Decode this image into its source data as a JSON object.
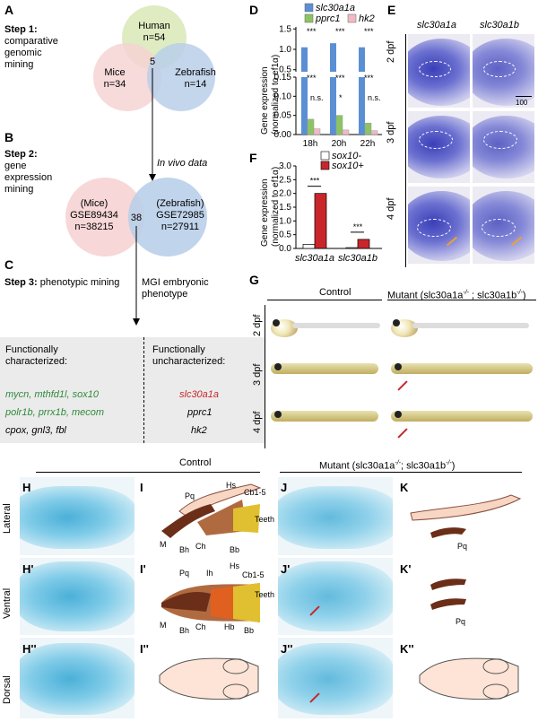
{
  "panel_labels": {
    "A": "A",
    "B": "B",
    "C": "C",
    "D": "D",
    "E": "E",
    "F": "F",
    "G": "G",
    "H": "H",
    "H1": "H'",
    "H2": "H''",
    "I": "I",
    "I1": "I'",
    "I2": "I''",
    "J": "J",
    "J1": "J'",
    "J2": "J''",
    "K": "K",
    "K1": "K'",
    "K2": "K''"
  },
  "step1": {
    "title": "Step 1",
    "colon": ":",
    "lines": [
      "comparative",
      "genomic",
      "mining"
    ]
  },
  "venn1": {
    "human": "Human",
    "human_n": "n=54",
    "mice": "Mice",
    "mice_n": "n=34",
    "zebrafish": "Zebrafish",
    "zebrafish_n": "n=14",
    "overlap": "5",
    "colors": {
      "human": "#d9e8b6",
      "mice": "#f6d3d3",
      "zebrafish": "#b9cfe9"
    }
  },
  "step2": {
    "title": "Step 2",
    "colon": ":",
    "lines": [
      "gene",
      "expression",
      "mining"
    ],
    "arrow_label": "In vivo data"
  },
  "venn2": {
    "left_name": "(Mice)",
    "left_id": "GSE89434",
    "left_n": "n=38215",
    "right_name": "(Zebrafish)",
    "right_id": "GSE72985",
    "right_n": "n=27911",
    "overlap": "38"
  },
  "step3": {
    "title": "Step 3",
    "colon": ":",
    "line": "phenotypic mining",
    "arrow_label_1": "MGI embryonic",
    "arrow_label_2": "phenotype"
  },
  "table": {
    "left_header_1": "Functionally",
    "left_header_2": "characterized:",
    "right_header_1": "Functionally",
    "right_header_2": "uncharacterized:",
    "left_rows": [
      "mycn, mthfd1l, sox10",
      "polr1b, prrx1b, mecom",
      "cpox, gnl3, fbl"
    ],
    "right_rows": [
      "slc30a1a",
      "pprc1",
      "hk2"
    ],
    "colors": {
      "green": "#2e8b3c",
      "red": "#c8262b"
    }
  },
  "chart_D": {
    "type": "bar",
    "legend": [
      "slc30a1a",
      "pprc1",
      "hk2"
    ],
    "colors": [
      "#5b8fd4",
      "#8cc462",
      "#f1b9c5"
    ],
    "categories": [
      "18h",
      "20h",
      "22h"
    ],
    "series": [
      {
        "name": "slc30a1a",
        "values": [
          1.05,
          1.15,
          1.05
        ]
      },
      {
        "name": "pprc1",
        "values": [
          0.04,
          0.05,
          0.03
        ]
      },
      {
        "name": "hk2",
        "values": [
          0.015,
          0.012,
          0.01
        ]
      }
    ],
    "ylabel_1": "Gene expression",
    "ylabel_2": "(normalized to ef1α)",
    "yticks_top": [
      "1.5",
      "1.0",
      "0.5"
    ],
    "yticks_bottom": [
      "0.15",
      "0.10",
      "0.05",
      "0.00"
    ],
    "sig": [
      "***",
      "***",
      "n.s.",
      "***",
      "***",
      "*",
      "***",
      "***",
      "n.s."
    ]
  },
  "chart_F": {
    "type": "bar",
    "legend": [
      "sox10-",
      "sox10+"
    ],
    "colors": [
      "#ffffff",
      "#c8262b"
    ],
    "categories": [
      "slc30a1a",
      "slc30a1b"
    ],
    "series": [
      {
        "name": "sox10-",
        "values": [
          0.15,
          0.03
        ]
      },
      {
        "name": "sox10+",
        "values": [
          2.0,
          0.33
        ]
      }
    ],
    "ylabel_1": "Gene expression",
    "ylabel_2": "(normalized to ef1α)",
    "yticks": [
      "3.0",
      "2.5",
      "2.0",
      "1.5",
      "1.0",
      "0.5",
      "0.0"
    ],
    "ylim": [
      0,
      3.0
    ],
    "sig": [
      "***",
      "***"
    ]
  },
  "panel_E": {
    "col1": "slc30a1a",
    "col2": "slc30a1b",
    "rows": [
      "2 dpf",
      "3 dpf",
      "4 dpf"
    ],
    "scale": "100 µm"
  },
  "panel_G": {
    "control": "Control",
    "mutant": "Mutant (slc30a1a",
    "mutant_sup1": "-/-",
    "mutant_mid": " ; slc30a1b",
    "mutant_sup2": "-/-",
    "mutant_end": ")",
    "rows": [
      "2 dpf",
      "3 dpf",
      "4 dpf"
    ]
  },
  "panel_H": {
    "control": "Control",
    "mutant": "Mutant (slc30a1a",
    "mutant_sup1": "-/-",
    "mutant_mid": "; slc30a1b",
    "mutant_sup2": "-/-",
    "mutant_end": ")",
    "rows": [
      "Lateral",
      "Ventral",
      "Dorsal"
    ]
  },
  "panel_I": {
    "labels": [
      "Hs",
      "Cb1-5",
      "Pq",
      "Teeth",
      "M",
      "Bh",
      "Ch",
      "Bb"
    ],
    "labels2": [
      "Pq",
      "Ih",
      "Hs",
      "Cb1-5",
      "Teeth",
      "M",
      "Bh",
      "Ch",
      "Hb",
      "Bb"
    ]
  },
  "panel_K": {
    "label": "Pq",
    "label2": "Pq"
  }
}
